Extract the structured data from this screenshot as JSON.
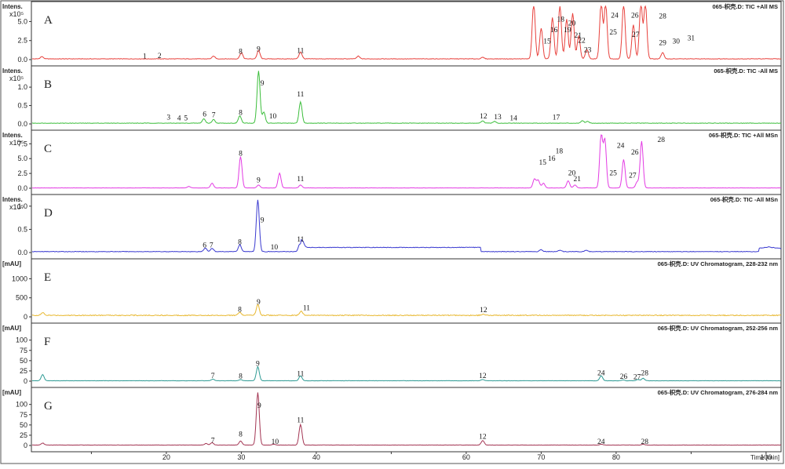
{
  "chart_data": {
    "type": "line",
    "xlabel": "Time [min]",
    "x_range": [
      2,
      102
    ],
    "x_ticks": [
      10,
      20,
      30,
      40,
      50,
      60,
      70,
      80,
      90,
      100
    ],
    "x_tick_labels": [
      "",
      "20",
      "30",
      "40",
      "",
      "60",
      "70",
      "80",
      "",
      "100"
    ],
    "panels": [
      {
        "id": "A",
        "title": "065-枳壳.D: TIC +All MS",
        "unit_label": "Intens.",
        "exponent_label": "x10⁵",
        "y_range": [
          0,
          7
        ],
        "y_ticks": [
          0.0,
          2.5,
          5.0
        ],
        "y_tick_labels": [
          "0.0",
          "2.5",
          "5.0"
        ],
        "color": "#e8413c",
        "baseline": 0.1,
        "peaks": [
          {
            "label": "1",
            "rt": 17.1,
            "h": 0.15
          },
          {
            "label": "2",
            "rt": 19.1,
            "h": 0.2
          },
          {
            "label": "8",
            "rt": 29.9,
            "h": 0.75
          },
          {
            "label": "9",
            "rt": 32.3,
            "h": 1.1
          },
          {
            "label": "11",
            "rt": 37.9,
            "h": 0.9
          },
          {
            "label": "15",
            "rt": 70.8,
            "h": 2.1
          },
          {
            "label": "16",
            "rt": 71.7,
            "h": 3.6
          },
          {
            "label": "18",
            "rt": 72.6,
            "h": 5.0
          },
          {
            "label": "19",
            "rt": 73.5,
            "h": 3.6
          },
          {
            "label": "20",
            "rt": 74.1,
            "h": 4.5
          },
          {
            "label": "21",
            "rt": 74.9,
            "h": 2.9
          },
          {
            "label": "22",
            "rt": 75.4,
            "h": 2.2
          },
          {
            "label": "23",
            "rt": 76.2,
            "h": 1.0
          },
          {
            "label": "24",
            "rt": 79.8,
            "h": 5.5
          },
          {
            "label": "25",
            "rt": 79.6,
            "h": 3.3
          },
          {
            "label": "26",
            "rt": 82.5,
            "h": 5.5
          },
          {
            "label": "27",
            "rt": 82.6,
            "h": 3.0
          },
          {
            "label": "28",
            "rt": 86.2,
            "h": 5.4
          },
          {
            "label": "29",
            "rt": 86.2,
            "h": 1.9
          },
          {
            "label": "30",
            "rt": 88.0,
            "h": 2.1
          },
          {
            "label": "31",
            "rt": 90.0,
            "h": 2.5
          }
        ],
        "trace_peaks": [
          [
            3.4,
            0.3
          ],
          [
            26.3,
            0.35
          ],
          [
            30.0,
            0.8
          ],
          [
            32.3,
            1.1
          ],
          [
            37.9,
            0.9
          ],
          [
            45.6,
            0.35
          ],
          [
            62.2,
            0.2
          ],
          [
            69.0,
            7.3
          ],
          [
            70.0,
            4.0
          ],
          [
            71.5,
            5.4
          ],
          [
            72.5,
            7.0
          ],
          [
            73.4,
            5.2
          ],
          [
            74.2,
            6.0
          ],
          [
            75.0,
            3.0
          ],
          [
            76.1,
            1.2
          ],
          [
            78.0,
            7.3
          ],
          [
            78.6,
            7.3
          ],
          [
            81.0,
            7.3
          ],
          [
            82.3,
            4.5
          ],
          [
            83.3,
            7.3
          ],
          [
            83.9,
            7.3
          ],
          [
            86.2,
            0.8
          ],
          [
            103.0,
            0.35
          ],
          [
            106.3,
            0.55
          ]
        ]
      },
      {
        "id": "B",
        "title": "065-枳壳.D: TIC -All MS",
        "unit_label": "Intens.",
        "exponent_label": "x10⁵",
        "y_range": [
          0,
          1.45
        ],
        "y_ticks": [
          0.0,
          0.5,
          1.0
        ],
        "y_tick_labels": [
          "0.0",
          "0.5",
          "1.0"
        ],
        "color": "#3cbe3c",
        "baseline": 0.02,
        "peaks": [
          {
            "label": "3",
            "rt": 20.3,
            "h": 0.12
          },
          {
            "label": "4",
            "rt": 21.7,
            "h": 0.1
          },
          {
            "label": "5",
            "rt": 22.6,
            "h": 0.1
          },
          {
            "label": "6",
            "rt": 25.1,
            "h": 0.2
          },
          {
            "label": "7",
            "rt": 26.3,
            "h": 0.18
          },
          {
            "label": "8",
            "rt": 29.9,
            "h": 0.25
          },
          {
            "label": "9",
            "rt": 32.8,
            "h": 1.05
          },
          {
            "label": "10",
            "rt": 34.2,
            "h": 0.15
          },
          {
            "label": "11",
            "rt": 37.9,
            "h": 0.75
          },
          {
            "label": "12",
            "rt": 62.3,
            "h": 0.15
          },
          {
            "label": "13",
            "rt": 64.2,
            "h": 0.13
          },
          {
            "label": "14",
            "rt": 66.3,
            "h": 0.1
          },
          {
            "label": "17",
            "rt": 72.0,
            "h": 0.12
          }
        ],
        "trace_peaks": [
          [
            25.0,
            0.12
          ],
          [
            26.3,
            0.1
          ],
          [
            29.8,
            0.2
          ],
          [
            32.3,
            1.42
          ],
          [
            33.0,
            0.3
          ],
          [
            37.9,
            0.58
          ],
          [
            62.2,
            0.06
          ],
          [
            63.8,
            0.05
          ],
          [
            75.5,
            0.07
          ],
          [
            76.2,
            0.05
          ],
          [
            104.5,
            0.06
          ],
          [
            106.3,
            0.1
          ]
        ]
      },
      {
        "id": "C",
        "title": "065-枳壳.D: TIC +All MSn",
        "unit_label": "Intens.",
        "exponent_label": "x10⁵",
        "y_range": [
          0,
          9.0
        ],
        "y_ticks": [
          0.0,
          2.5,
          5.0,
          7.5
        ],
        "y_tick_labels": [
          "0.0",
          "2.5",
          "5.0",
          "7.5"
        ],
        "color": "#e33be3",
        "baseline": 0.05,
        "peaks": [
          {
            "label": "8",
            "rt": 29.9,
            "h": 5.5
          },
          {
            "label": "9",
            "rt": 32.3,
            "h": 1.0
          },
          {
            "label": "11",
            "rt": 37.9,
            "h": 1.2
          },
          {
            "label": "15",
            "rt": 70.2,
            "h": 4.0
          },
          {
            "label": "16",
            "rt": 71.4,
            "h": 4.6
          },
          {
            "label": "18",
            "rt": 72.4,
            "h": 5.9
          },
          {
            "label": "20",
            "rt": 74.1,
            "h": 2.2
          },
          {
            "label": "21",
            "rt": 74.8,
            "h": 1.2
          },
          {
            "label": "24",
            "rt": 80.6,
            "h": 6.8
          },
          {
            "label": "25",
            "rt": 79.6,
            "h": 2.2
          },
          {
            "label": "26",
            "rt": 82.5,
            "h": 5.7
          },
          {
            "label": "27",
            "rt": 82.2,
            "h": 1.8
          },
          {
            "label": "28",
            "rt": 86.0,
            "h": 7.8
          }
        ],
        "trace_peaks": [
          [
            23.0,
            0.25
          ],
          [
            26.1,
            0.8
          ],
          [
            29.9,
            5.3
          ],
          [
            32.3,
            0.5
          ],
          [
            35.1,
            2.5
          ],
          [
            37.9,
            0.5
          ],
          [
            69.1,
            1.5
          ],
          [
            69.6,
            1.3
          ],
          [
            70.3,
            0.8
          ],
          [
            73.6,
            1.2
          ],
          [
            74.5,
            0.5
          ],
          [
            78.0,
            8.9
          ],
          [
            78.5,
            8.0
          ],
          [
            81.0,
            4.8
          ],
          [
            82.8,
            1.0
          ],
          [
            83.4,
            7.9
          ]
        ]
      },
      {
        "id": "D",
        "title": "065-枳壳.D: TIC -All MSn",
        "unit_label": "Intens.",
        "exponent_label": "x10⁵",
        "y_range": [
          0,
          1.15
        ],
        "y_ticks": [
          0.0,
          0.5,
          1.0
        ],
        "y_tick_labels": [
          "0.0",
          "0.5",
          "1.0"
        ],
        "color": "#3a3ad0",
        "baseline": 0.02,
        "peaks": [
          {
            "label": "6",
            "rt": 25.1,
            "h": 0.11
          },
          {
            "label": "7",
            "rt": 26.0,
            "h": 0.11
          },
          {
            "label": "8",
            "rt": 29.8,
            "h": 0.18
          },
          {
            "label": "9",
            "rt": 32.8,
            "h": 0.65
          },
          {
            "label": "10",
            "rt": 34.4,
            "h": 0.07
          },
          {
            "label": "11",
            "rt": 37.9,
            "h": 0.24
          }
        ],
        "trace_peaks": [
          [
            25.2,
            0.08
          ],
          [
            26.1,
            0.07
          ],
          [
            29.8,
            0.15
          ],
          [
            32.2,
            1.12
          ],
          [
            37.8,
            0.15
          ],
          [
            38.2,
            0.12
          ],
          [
            70.0,
            0.04
          ],
          [
            72.5,
            0.03
          ],
          [
            76.0,
            0.03
          ]
        ]
      },
      {
        "id": "E",
        "title": "065-枳壳.D: UV Chromatogram, 228-232 nm",
        "unit_label": "[mAU]",
        "y_range": [
          0,
          1400
        ],
        "y_ticks": [
          0,
          500,
          1000
        ],
        "y_tick_labels": [
          "0",
          "500",
          "1000"
        ],
        "color": "#e8b830",
        "baseline": 40,
        "peaks": [
          {
            "label": "8",
            "rt": 29.8,
            "h": 130
          },
          {
            "label": "9",
            "rt": 32.3,
            "h": 330
          },
          {
            "label": "11",
            "rt": 38.7,
            "h": 180
          },
          {
            "label": "12",
            "rt": 62.3,
            "h": 120
          }
        ],
        "trace_peaks": [
          [
            3.5,
            70
          ],
          [
            29.8,
            80
          ],
          [
            32.2,
            290
          ],
          [
            38.0,
            110
          ],
          [
            62.2,
            30
          ]
        ]
      },
      {
        "id": "F",
        "title": "065-枳壳.D: UV Chromatogram, 252-256 nm",
        "unit_label": "[mAU]",
        "y_range": [
          0,
          130
        ],
        "y_ticks": [
          0,
          25,
          50,
          75,
          100
        ],
        "y_tick_labels": [
          "0",
          "25",
          "50",
          "75",
          "100"
        ],
        "color": "#2e9b94",
        "baseline": 1,
        "peaks": [
          {
            "label": "7",
            "rt": 26.2,
            "h": 8
          },
          {
            "label": "8",
            "rt": 29.9,
            "h": 7
          },
          {
            "label": "9",
            "rt": 32.2,
            "h": 37
          },
          {
            "label": "11",
            "rt": 37.9,
            "h": 12
          },
          {
            "label": "12",
            "rt": 62.2,
            "h": 8
          },
          {
            "label": "24",
            "rt": 78.0,
            "h": 14
          },
          {
            "label": "26",
            "rt": 81.0,
            "h": 6
          },
          {
            "label": "27",
            "rt": 82.8,
            "h": 5
          },
          {
            "label": "28",
            "rt": 83.8,
            "h": 14
          }
        ],
        "trace_peaks": [
          [
            3.5,
            15
          ],
          [
            26.2,
            4
          ],
          [
            29.9,
            3
          ],
          [
            32.2,
            34
          ],
          [
            37.9,
            12
          ],
          [
            62.2,
            3
          ],
          [
            78.0,
            12
          ],
          [
            80.9,
            2
          ],
          [
            82.9,
            3
          ],
          [
            83.6,
            6
          ]
        ]
      },
      {
        "id": "G",
        "title": "065-枳壳.D: UV Chromatogram, 276-284 nm",
        "unit_label": "[mAU]",
        "y_range": [
          0,
          130
        ],
        "y_ticks": [
          0,
          25,
          50,
          75,
          100
        ],
        "y_tick_labels": [
          "0",
          "25",
          "50",
          "75",
          "100"
        ],
        "color": "#a33553",
        "baseline": 1,
        "peaks": [
          {
            "label": "7",
            "rt": 26.2,
            "h": 7
          },
          {
            "label": "8",
            "rt": 29.9,
            "h": 22
          },
          {
            "label": "9",
            "rt": 32.4,
            "h": 92
          },
          {
            "label": "10",
            "rt": 34.5,
            "h": 4
          },
          {
            "label": "11",
            "rt": 37.9,
            "h": 56
          },
          {
            "label": "12",
            "rt": 62.2,
            "h": 16
          },
          {
            "label": "24",
            "rt": 78.0,
            "h": 4
          },
          {
            "label": "28",
            "rt": 83.8,
            "h": 4
          }
        ],
        "trace_peaks": [
          [
            3.5,
            5
          ],
          [
            25.3,
            4
          ],
          [
            26.1,
            6
          ],
          [
            29.9,
            10
          ],
          [
            32.2,
            128
          ],
          [
            34.3,
            2
          ],
          [
            37.9,
            50
          ],
          [
            62.2,
            11
          ],
          [
            78.0,
            2
          ],
          [
            83.6,
            2
          ]
        ]
      }
    ]
  }
}
